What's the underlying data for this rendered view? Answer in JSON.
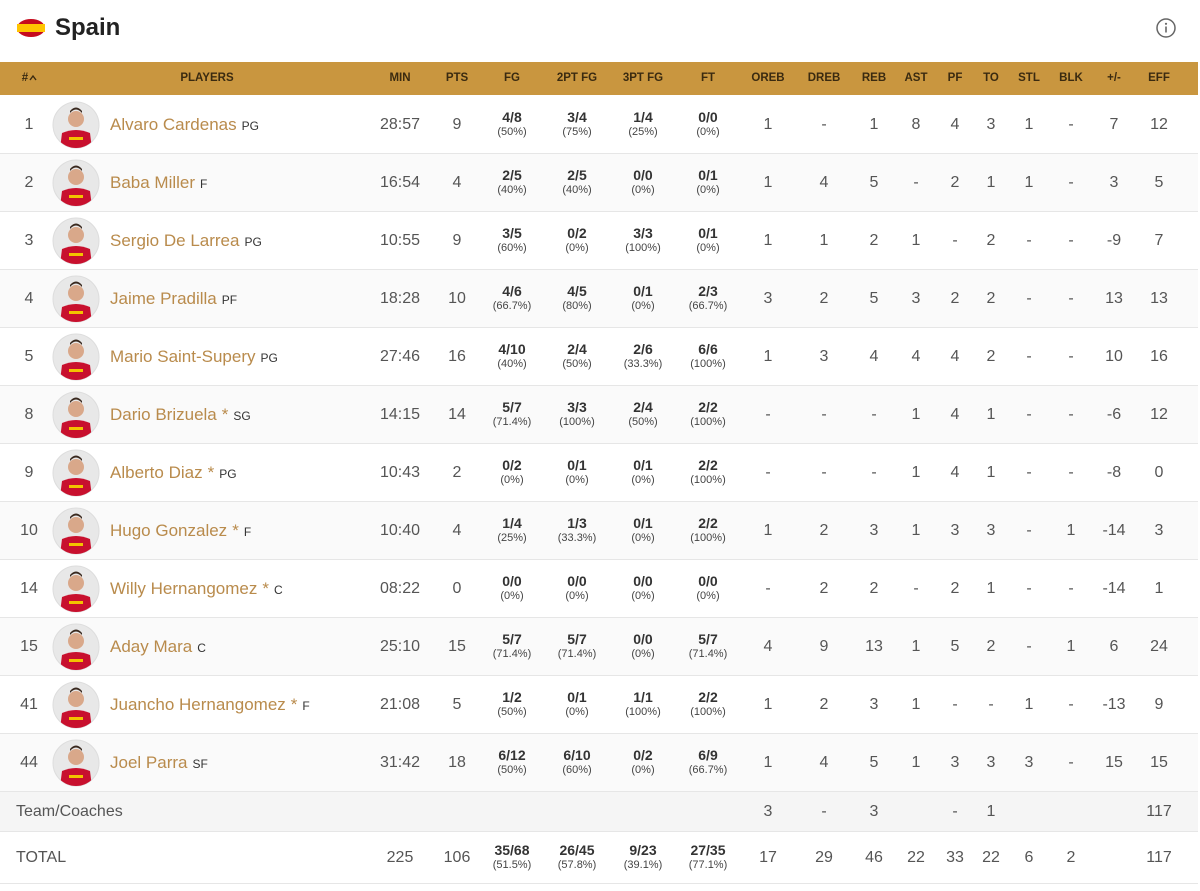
{
  "header": {
    "title": "Spain"
  },
  "table": {
    "columns": [
      "#",
      "PLAYERS",
      "MIN",
      "PTS",
      "FG",
      "2PT FG",
      "3PT FG",
      "FT",
      "OREB",
      "DREB",
      "REB",
      "AST",
      "PF",
      "TO",
      "STL",
      "BLK",
      "+/-",
      "EFF"
    ],
    "rows": [
      {
        "no": "1",
        "name": "Alvaro Cardenas",
        "pos": "PG",
        "stats": [
          "28:57",
          "9",
          [
            "4/8",
            "(50%)"
          ],
          [
            "3/4",
            "(75%)"
          ],
          [
            "1/4",
            "(25%)"
          ],
          [
            "0/0",
            "(0%)"
          ],
          "1",
          "-",
          "1",
          "8",
          "4",
          "3",
          "1",
          "-",
          "7",
          "12"
        ]
      },
      {
        "no": "2",
        "name": "Baba Miller",
        "pos": "F",
        "stats": [
          "16:54",
          "4",
          [
            "2/5",
            "(40%)"
          ],
          [
            "2/5",
            "(40%)"
          ],
          [
            "0/0",
            "(0%)"
          ],
          [
            "0/1",
            "(0%)"
          ],
          "1",
          "4",
          "5",
          "-",
          "2",
          "1",
          "1",
          "-",
          "3",
          "5"
        ]
      },
      {
        "no": "3",
        "name": "Sergio De Larrea",
        "pos": "PG",
        "stats": [
          "10:55",
          "9",
          [
            "3/5",
            "(60%)"
          ],
          [
            "0/2",
            "(0%)"
          ],
          [
            "3/3",
            "(100%)"
          ],
          [
            "0/1",
            "(0%)"
          ],
          "1",
          "1",
          "2",
          "1",
          "-",
          "2",
          "-",
          "-",
          "-9",
          "7"
        ]
      },
      {
        "no": "4",
        "name": "Jaime Pradilla",
        "pos": "PF",
        "stats": [
          "18:28",
          "10",
          [
            "4/6",
            "(66.7%)"
          ],
          [
            "4/5",
            "(80%)"
          ],
          [
            "0/1",
            "(0%)"
          ],
          [
            "2/3",
            "(66.7%)"
          ],
          "3",
          "2",
          "5",
          "3",
          "2",
          "2",
          "-",
          "-",
          "13",
          "13"
        ]
      },
      {
        "no": "5",
        "name": "Mario Saint-Supery",
        "pos": "PG",
        "stats": [
          "27:46",
          "16",
          [
            "4/10",
            "(40%)"
          ],
          [
            "2/4",
            "(50%)"
          ],
          [
            "2/6",
            "(33.3%)"
          ],
          [
            "6/6",
            "(100%)"
          ],
          "1",
          "3",
          "4",
          "4",
          "4",
          "2",
          "-",
          "-",
          "10",
          "16"
        ]
      },
      {
        "no": "8",
        "name": "Dario Brizuela",
        "star": "*",
        "pos": "SG",
        "stats": [
          "14:15",
          "14",
          [
            "5/7",
            "(71.4%)"
          ],
          [
            "3/3",
            "(100%)"
          ],
          [
            "2/4",
            "(50%)"
          ],
          [
            "2/2",
            "(100%)"
          ],
          "-",
          "-",
          "-",
          "1",
          "4",
          "1",
          "-",
          "-",
          "-6",
          "12"
        ]
      },
      {
        "no": "9",
        "name": "Alberto Diaz",
        "star": "*",
        "pos": "PG",
        "stats": [
          "10:43",
          "2",
          [
            "0/2",
            "(0%)"
          ],
          [
            "0/1",
            "(0%)"
          ],
          [
            "0/1",
            "(0%)"
          ],
          [
            "2/2",
            "(100%)"
          ],
          "-",
          "-",
          "-",
          "1",
          "4",
          "1",
          "-",
          "-",
          "-8",
          "0"
        ]
      },
      {
        "no": "10",
        "name": "Hugo Gonzalez",
        "star": "*",
        "pos": "F",
        "stats": [
          "10:40",
          "4",
          [
            "1/4",
            "(25%)"
          ],
          [
            "1/3",
            "(33.3%)"
          ],
          [
            "0/1",
            "(0%)"
          ],
          [
            "2/2",
            "(100%)"
          ],
          "1",
          "2",
          "3",
          "1",
          "3",
          "3",
          "-",
          "1",
          "-14",
          "3"
        ]
      },
      {
        "no": "14",
        "name": "Willy Hernangomez",
        "star": "*",
        "pos": "C",
        "stats": [
          "08:22",
          "0",
          [
            "0/0",
            "(0%)"
          ],
          [
            "0/0",
            "(0%)"
          ],
          [
            "0/0",
            "(0%)"
          ],
          [
            "0/0",
            "(0%)"
          ],
          "-",
          "2",
          "2",
          "-",
          "2",
          "1",
          "-",
          "-",
          "-14",
          "1"
        ]
      },
      {
        "no": "15",
        "name": "Aday Mara",
        "pos": "C",
        "stats": [
          "25:10",
          "15",
          [
            "5/7",
            "(71.4%)"
          ],
          [
            "5/7",
            "(71.4%)"
          ],
          [
            "0/0",
            "(0%)"
          ],
          [
            "5/7",
            "(71.4%)"
          ],
          "4",
          "9",
          "13",
          "1",
          "5",
          "2",
          "-",
          "1",
          "6",
          "24"
        ]
      },
      {
        "no": "41",
        "name": "Juancho Hernangomez",
        "star": "*",
        "pos": "F",
        "stats": [
          "21:08",
          "5",
          [
            "1/2",
            "(50%)"
          ],
          [
            "0/1",
            "(0%)"
          ],
          [
            "1/1",
            "(100%)"
          ],
          [
            "2/2",
            "(100%)"
          ],
          "1",
          "2",
          "3",
          "1",
          "-",
          "-",
          "1",
          "-",
          "-13",
          "9"
        ]
      },
      {
        "no": "44",
        "name": "Joel Parra",
        "pos": "SF",
        "stats": [
          "31:42",
          "18",
          [
            "6/12",
            "(50%)"
          ],
          [
            "6/10",
            "(60%)"
          ],
          [
            "0/2",
            "(0%)"
          ],
          [
            "6/9",
            "(66.7%)"
          ],
          "1",
          "4",
          "5",
          "1",
          "3",
          "3",
          "3",
          "-",
          "15",
          "15"
        ]
      }
    ],
    "team": {
      "label": "Team/Coaches",
      "stats": [
        null,
        null,
        null,
        null,
        null,
        null,
        "3",
        "-",
        "3",
        null,
        "-",
        "1",
        null,
        null,
        null,
        "117"
      ]
    },
    "total": {
      "label": "TOTAL",
      "stats": [
        "225",
        "106",
        [
          "35/68",
          "(51.5%)"
        ],
        [
          "26/45",
          "(57.8%)"
        ],
        [
          "9/23",
          "(39.1%)"
        ],
        [
          "27/35",
          "(77.1%)"
        ],
        "17",
        "29",
        "46",
        "22",
        "33",
        "22",
        "6",
        "2",
        null,
        "117"
      ]
    }
  }
}
